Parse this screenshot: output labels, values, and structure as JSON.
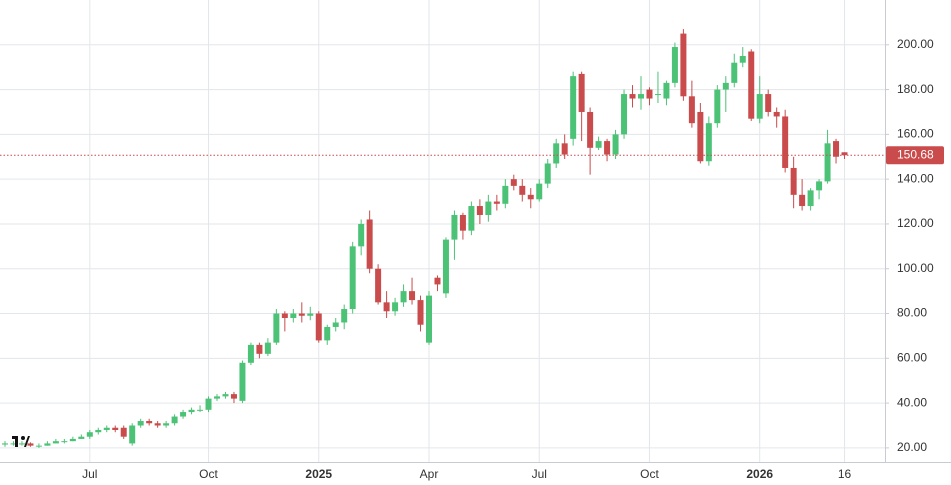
{
  "chart_data": {
    "type": "candlestick",
    "up_color": "#4cc276",
    "down_color": "#c94b4b",
    "categories": [
      null,
      null,
      null,
      null,
      null,
      null,
      null,
      null,
      null,
      null,
      "Jul",
      null,
      null,
      null,
      null,
      null,
      null,
      null,
      null,
      null,
      null,
      null,
      null,
      null,
      "Oct",
      null,
      null,
      null,
      null,
      null,
      null,
      null,
      null,
      null,
      null,
      null,
      null,
      "2025",
      null,
      null,
      null,
      null,
      null,
      null,
      null,
      null,
      null,
      null,
      null,
      null,
      "Apr",
      null,
      null,
      null,
      null,
      null,
      null,
      null,
      null,
      null,
      null,
      null,
      null,
      "Jul",
      null,
      null,
      null,
      null,
      null,
      null,
      null,
      null,
      null,
      null,
      null,
      null,
      "Oct",
      null,
      null,
      null,
      null,
      null,
      null,
      null,
      null,
      null,
      null,
      null,
      null,
      "2026",
      null,
      null,
      null,
      null,
      null,
      null,
      null,
      null,
      null,
      "16"
    ],
    "open": [
      21.5,
      22,
      22,
      22,
      21,
      21,
      22,
      23,
      23,
      24,
      25,
      27,
      28,
      29,
      29,
      22,
      30,
      32,
      31,
      30,
      31,
      34,
      36,
      37,
      37,
      42,
      43,
      44,
      41,
      58,
      66,
      62,
      67,
      80,
      78,
      80,
      79,
      80,
      68,
      74,
      76,
      82,
      110,
      122,
      100,
      85,
      81,
      85,
      90,
      86,
      67,
      96,
      89,
      113,
      124,
      117,
      128,
      124,
      130,
      129,
      140,
      137,
      133,
      131,
      138,
      147,
      156,
      158,
      187,
      170,
      154,
      157,
      151,
      160,
      178,
      176,
      180,
      178,
      176,
      183,
      205,
      177,
      170,
      148,
      165,
      180,
      183,
      192,
      197,
      167,
      178,
      170,
      168,
      145,
      133,
      128,
      135,
      139,
      157,
      152
    ],
    "high": [
      23,
      23,
      23,
      22.5,
      22,
      23,
      24,
      24,
      25,
      26,
      28,
      29,
      30,
      30,
      30,
      31,
      33,
      33,
      32,
      32,
      35,
      37,
      38,
      39,
      43,
      44,
      45,
      45,
      59,
      67,
      67,
      69,
      82,
      81,
      82,
      85,
      83,
      81,
      75,
      78,
      84,
      112,
      122,
      126,
      102,
      90,
      87,
      93,
      96,
      88,
      90,
      97,
      114,
      126,
      125,
      130,
      131,
      133,
      133,
      140,
      142,
      140,
      136,
      140,
      149,
      158,
      160,
      188,
      188,
      172,
      159,
      158,
      162,
      180,
      182,
      186,
      181,
      188,
      184,
      201,
      207,
      184,
      174,
      168,
      182,
      186,
      196,
      199,
      198,
      186,
      180,
      172,
      171,
      150,
      140,
      136,
      140,
      162,
      158,
      152
    ],
    "low": [
      20.5,
      21,
      21,
      20.5,
      20,
      21,
      22,
      22,
      23,
      24,
      24,
      26,
      27,
      27,
      24,
      21,
      29,
      30,
      29,
      29,
      30,
      33,
      35,
      36,
      36,
      41,
      42,
      40,
      40,
      57,
      60,
      61,
      66,
      72,
      76,
      76,
      77,
      67,
      66,
      72,
      73,
      80,
      106,
      98,
      84,
      78,
      79,
      83,
      84,
      72,
      66,
      90,
      87,
      104,
      113,
      115,
      120,
      121,
      126,
      127,
      135,
      130,
      127,
      130,
      136,
      145,
      149,
      155,
      157,
      142,
      153,
      148,
      149,
      158,
      172,
      171,
      173,
      174,
      173,
      181,
      175,
      163,
      147,
      146,
      163,
      170,
      181,
      190,
      166,
      165,
      168,
      163,
      143,
      127,
      126,
      126,
      131,
      138,
      147,
      149
    ],
    "close": [
      22,
      22,
      22,
      21,
      21,
      22,
      23,
      23,
      24,
      25,
      27,
      28,
      29,
      28,
      25,
      30,
      32,
      31,
      30,
      31,
      34,
      36,
      37,
      37,
      42,
      43,
      44,
      42,
      58,
      66,
      62,
      67,
      80,
      78,
      80,
      79,
      80,
      68,
      74,
      76,
      82,
      110,
      120,
      100,
      85,
      81,
      85,
      90,
      86,
      75,
      88,
      93,
      113,
      124,
      117,
      128,
      124,
      130,
      129,
      137,
      137,
      133,
      131,
      138,
      147,
      156,
      151,
      186,
      170,
      154,
      157,
      151,
      160,
      178,
      176,
      178,
      176,
      178,
      183,
      199,
      177,
      165,
      148,
      165,
      180,
      183,
      192,
      195,
      167,
      178,
      170,
      168,
      145,
      133,
      128,
      135,
      139,
      156,
      150,
      150.68
    ],
    "last_price": 150.68,
    "last_price_color": "#c94b4b",
    "ylim": [
      13.7,
      220
    ],
    "yticks": [
      {
        "value": 20,
        "label": "20.00"
      },
      {
        "value": 40,
        "label": "40.00"
      },
      {
        "value": 60,
        "label": "60.00"
      },
      {
        "value": 80,
        "label": "80.00"
      },
      {
        "value": 100,
        "label": "100.00"
      },
      {
        "value": 120,
        "label": "120.00"
      },
      {
        "value": 140,
        "label": "140.00"
      },
      {
        "value": 160,
        "label": "160.00"
      },
      {
        "value": 180,
        "label": "180.00"
      },
      {
        "value": 200,
        "label": "200.00"
      }
    ],
    "grid": true
  }
}
